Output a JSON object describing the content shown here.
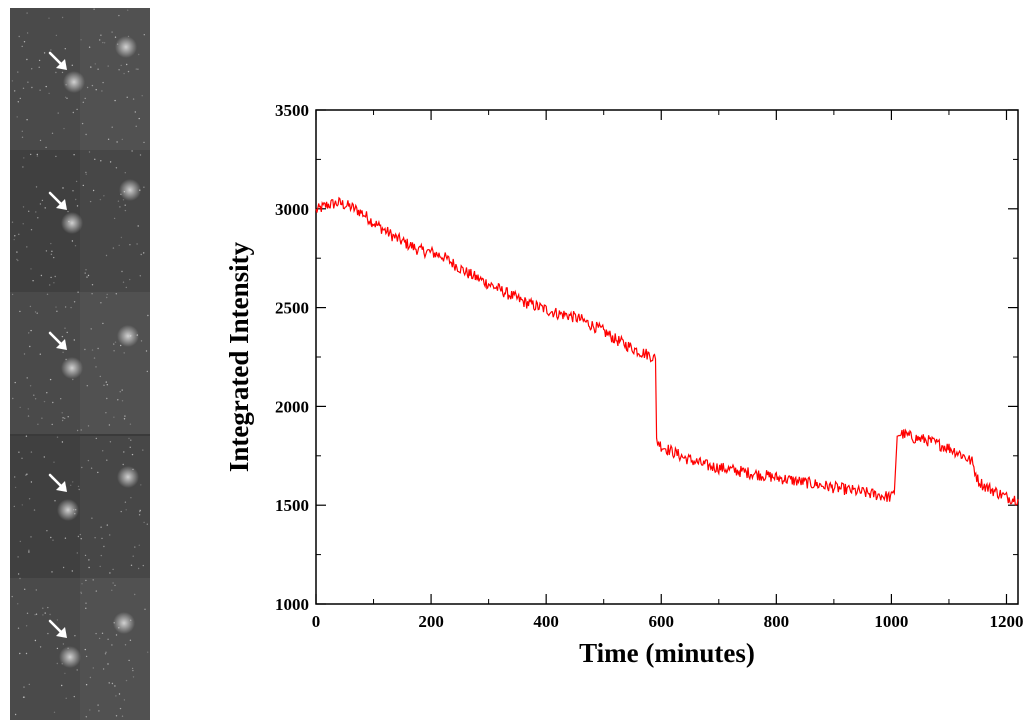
{
  "colors": {
    "series": "#ff0000",
    "axis": "#000000",
    "frame_dark": "#3a3a3a",
    "frame_light": "#8c8c8c",
    "spot": "#d8d8d8",
    "arrow": "#ffffff"
  },
  "filmstrip": {
    "frames": 5,
    "arrow_icon": "arrow-down-right-icon"
  },
  "chart_data": {
    "type": "line",
    "xlabel": "Time (minutes)",
    "ylabel": "Integrated Intensity",
    "xlim": [
      0,
      1220
    ],
    "ylim": [
      1000,
      3500
    ],
    "xticks": [
      0,
      200,
      400,
      600,
      800,
      1000,
      1200
    ],
    "yticks": [
      1000,
      1500,
      2000,
      2500,
      3000,
      3500
    ],
    "grid": false,
    "legend": "none",
    "series": [
      {
        "color": "#ff0000",
        "x": [
          0,
          20,
          40,
          60,
          80,
          100,
          120,
          140,
          160,
          180,
          200,
          220,
          240,
          260,
          280,
          300,
          320,
          340,
          360,
          380,
          400,
          420,
          440,
          460,
          480,
          500,
          520,
          540,
          560,
          580,
          590,
          592,
          600,
          620,
          640,
          660,
          680,
          700,
          720,
          740,
          760,
          780,
          800,
          820,
          840,
          860,
          880,
          900,
          920,
          940,
          960,
          980,
          1000,
          1005,
          1010,
          1020,
          1040,
          1060,
          1080,
          1100,
          1120,
          1140,
          1150,
          1160,
          1180,
          1200,
          1220
        ],
        "y": [
          2990,
          3020,
          3030,
          3010,
          2980,
          2930,
          2890,
          2850,
          2820,
          2790,
          2780,
          2760,
          2720,
          2680,
          2650,
          2620,
          2590,
          2560,
          2530,
          2510,
          2490,
          2470,
          2460,
          2440,
          2410,
          2380,
          2340,
          2310,
          2280,
          2260,
          2240,
          1830,
          1800,
          1770,
          1740,
          1720,
          1700,
          1690,
          1680,
          1670,
          1660,
          1650,
          1640,
          1630,
          1620,
          1610,
          1600,
          1590,
          1580,
          1570,
          1560,
          1550,
          1540,
          1560,
          1860,
          1860,
          1840,
          1830,
          1810,
          1790,
          1760,
          1720,
          1630,
          1600,
          1570,
          1540,
          1530
        ]
      }
    ]
  }
}
